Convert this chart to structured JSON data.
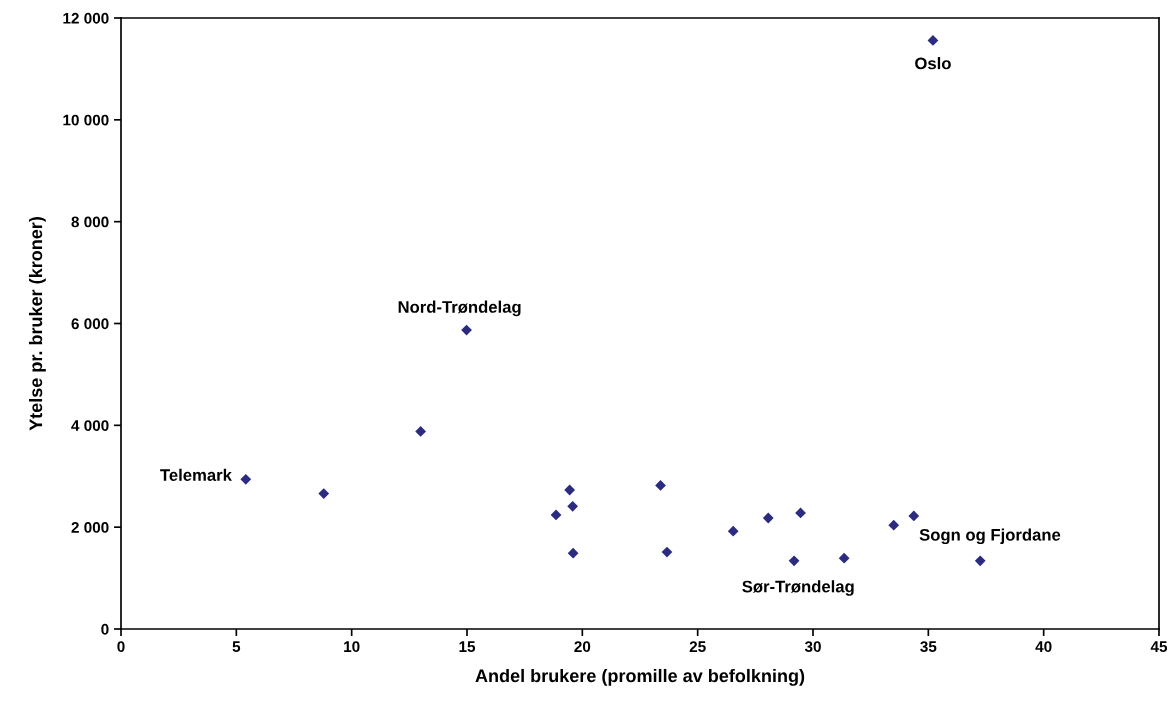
{
  "chart_data": {
    "type": "scatter",
    "xlabel": "Andel brukere (promille av befolkning)",
    "ylabel": "Ytelse pr. bruker (kroner)",
    "x": [
      5.41,
      8.79,
      12.99,
      14.98,
      18.86,
      19.45,
      19.58,
      19.6,
      23.39,
      23.67,
      26.54,
      28.06,
      29.46,
      29.18,
      31.35,
      33.5,
      34.37,
      37.25,
      35.2
    ],
    "series": [
      {
        "color": "#2b2b80",
        "values": [
          2940,
          2660,
          3880,
          5870,
          2240,
          2730,
          2410,
          1490,
          2820,
          1510,
          1920,
          2180,
          2280,
          1340,
          1390,
          2040,
          2220,
          1340,
          11560
        ]
      }
    ],
    "marker": "diamond",
    "grid": false,
    "legend": false,
    "xlim": [
      0,
      45
    ],
    "xticks": [
      0,
      5,
      10,
      15,
      20,
      25,
      30,
      35,
      40,
      45
    ],
    "ylim": [
      0,
      12000
    ],
    "yticks": [
      0,
      {
        "value": 2000,
        "label": "2 000"
      },
      {
        "value": 4000,
        "label": "4 000"
      },
      {
        "value": 6000,
        "label": "6 000"
      },
      {
        "value": 8000,
        "label": "8 000"
      },
      {
        "value": 10000,
        "label": "10 000"
      },
      {
        "value": 12000,
        "label": "12 000"
      }
    ],
    "annotations": [
      {
        "text": "Oslo",
        "x": 35.2,
        "y": 11560
      },
      {
        "text": "Nord-Trøndelag",
        "x": 14.98,
        "y": 5870
      },
      {
        "text": "Telemark",
        "x": 5.41,
        "y": 2940
      },
      {
        "text": "Sør-Trøndelag",
        "x": 29.18,
        "y": 1340
      },
      {
        "text": "Sogn og Fjordane",
        "x": 37.25,
        "y": 1340
      }
    ]
  }
}
